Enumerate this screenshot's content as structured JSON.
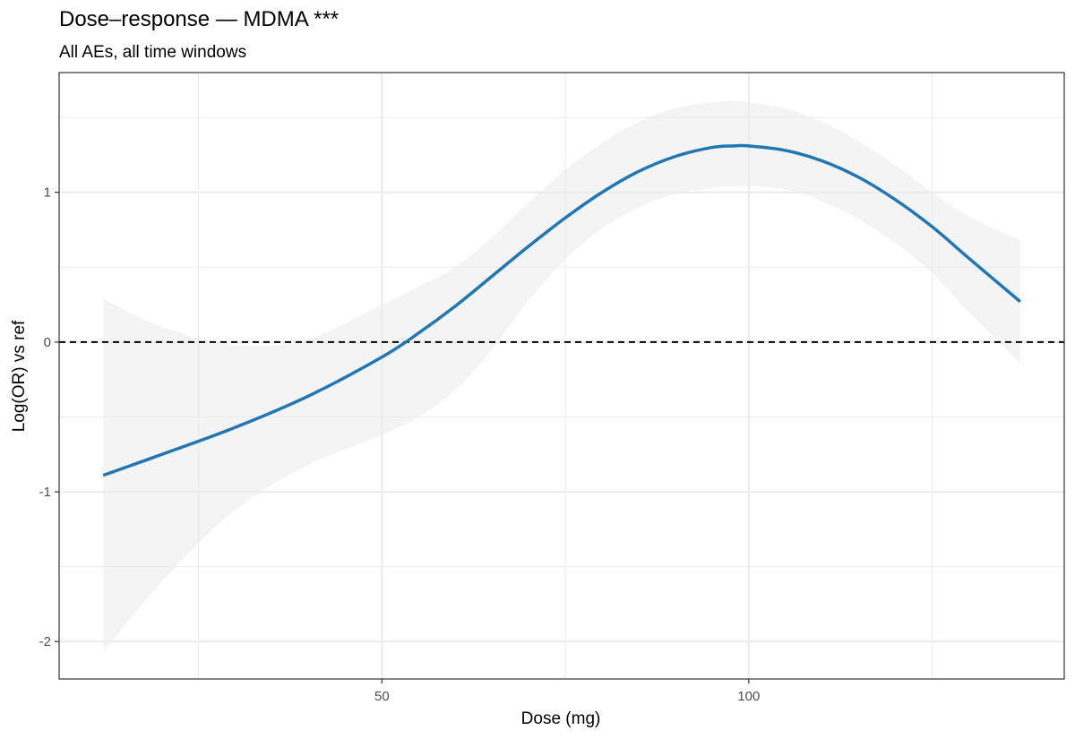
{
  "chart_data": {
    "type": "line",
    "title": "Dose–response — MDMA ***",
    "subtitle": "All AEs, all time windows",
    "xlabel": "Dose (mg)",
    "ylabel": "Log(OR) vs ref",
    "xlim": [
      6,
      143
    ],
    "ylim": [
      -2.25,
      1.8
    ],
    "x_ticks": [
      50,
      100
    ],
    "x_tick_labels": [
      "50",
      "100"
    ],
    "x_minor_ticks": [
      25,
      75,
      125
    ],
    "y_ticks": [
      -2,
      -1,
      0,
      1
    ],
    "y_tick_labels": [
      "-2",
      "-1",
      "0",
      "1"
    ],
    "y_minor_ticks": [
      -1.5,
      -0.5,
      0.5,
      1.5
    ],
    "reference_line": {
      "y": 0,
      "style": "dashed",
      "color": "#000000"
    },
    "grid": true,
    "colors": {
      "line": "#2077b4",
      "ribbon": "#ebebeb",
      "grid": "#ebebeb",
      "panel_border": "#333333"
    },
    "series": [
      {
        "x": [
          12,
          20,
          30,
          40,
          50,
          55,
          60,
          65,
          70,
          75,
          80,
          85,
          90,
          95,
          98,
          100,
          105,
          110,
          115,
          120,
          125,
          130,
          137
        ],
        "y": [
          -0.89,
          -0.75,
          -0.57,
          -0.36,
          -0.1,
          0.06,
          0.24,
          0.44,
          0.64,
          0.83,
          1.0,
          1.14,
          1.24,
          1.3,
          1.31,
          1.31,
          1.28,
          1.21,
          1.1,
          0.95,
          0.77,
          0.56,
          0.27
        ],
        "ci_upper": [
          0.29,
          0.1,
          -0.02,
          0.02,
          0.25,
          0.37,
          0.5,
          0.7,
          0.93,
          1.15,
          1.33,
          1.47,
          1.56,
          1.6,
          1.61,
          1.6,
          1.56,
          1.47,
          1.34,
          1.18,
          1.0,
          0.84,
          0.68
        ],
        "ci_lower": [
          -2.07,
          -1.6,
          -1.12,
          -0.82,
          -0.62,
          -0.5,
          -0.32,
          -0.05,
          0.28,
          0.55,
          0.76,
          0.9,
          0.99,
          1.03,
          1.04,
          1.04,
          1.02,
          0.94,
          0.82,
          0.66,
          0.46,
          0.2,
          -0.14
        ]
      }
    ]
  }
}
